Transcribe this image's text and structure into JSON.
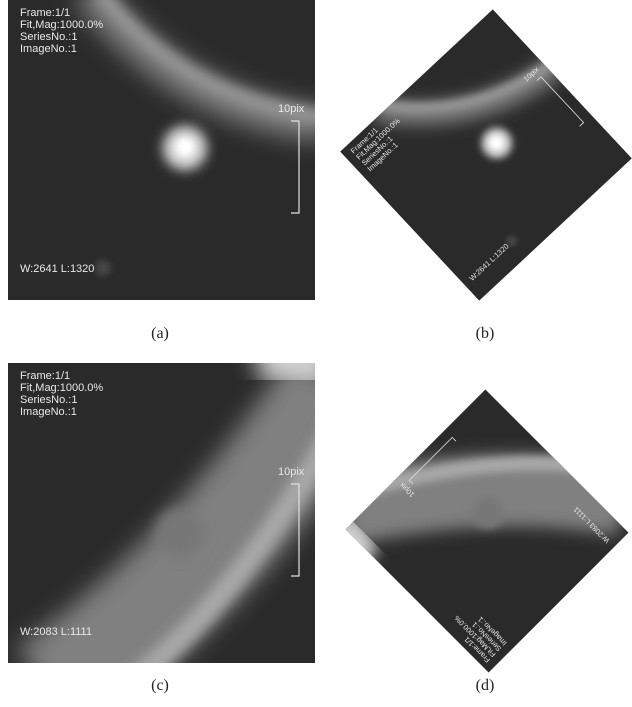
{
  "panels": [
    {
      "overlay": {
        "frame": "Frame:1/1",
        "fit": "Fit,Mag:1000.0%",
        "series": "SeriesNo.:1",
        "image": "ImageNo.:1",
        "window": "W:2641 L:1320",
        "scale": "10pix"
      },
      "caption": "(a)"
    },
    {
      "overlay": {
        "frame": "Frame:1/1",
        "fit": "Fit,Mag:1000.0%",
        "series": "SeriesNo.:1",
        "image": "ImageNo.:1",
        "window": "W:2641 L:1320",
        "scale": "10pix"
      },
      "caption": "(b)"
    },
    {
      "overlay": {
        "frame": "Frame:1/1",
        "fit": "Fit,Mag:1000.0%",
        "series": "SeriesNo.:1",
        "image": "ImageNo.:1",
        "window": "W:2083 L:1111",
        "scale": "10pix"
      },
      "caption": "(c)"
    },
    {
      "overlay": {
        "frame": "Frame:1/1",
        "fit": "Fit,Mag:1000.0%",
        "series": "SeriesNo.:1",
        "image": "ImageNo.:1",
        "window": "W:2083 L:1111",
        "scale": "10pix"
      },
      "caption": "(d)"
    }
  ]
}
